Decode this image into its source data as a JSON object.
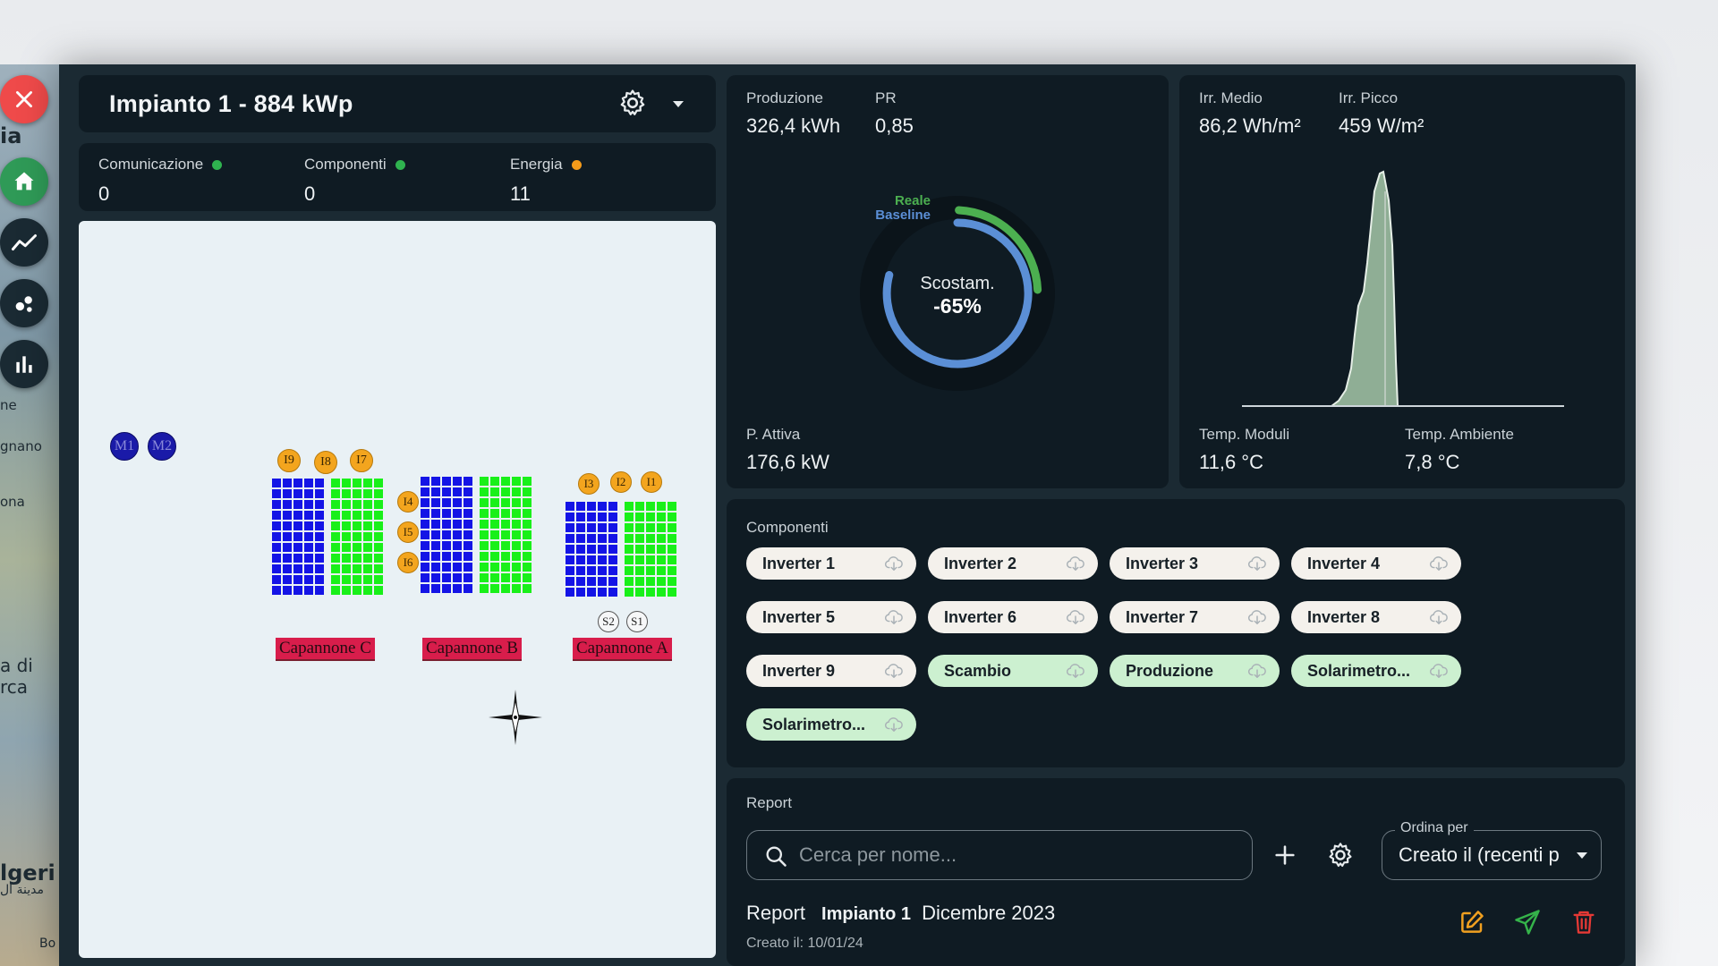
{
  "map_backdrop": {
    "labels": [
      "ia",
      "ne",
      "gnano",
      "ona",
      "a di",
      "rca",
      "lgeri",
      "مدينة ال",
      "Bo"
    ]
  },
  "sidebar": {
    "items": [
      {
        "name": "close",
        "icon": "close-icon"
      },
      {
        "name": "home",
        "icon": "home-icon"
      },
      {
        "name": "trend",
        "icon": "trend-line-icon"
      },
      {
        "name": "nodes",
        "icon": "nodes-icon"
      },
      {
        "name": "bar-chart",
        "icon": "bar-chart-icon"
      }
    ]
  },
  "header": {
    "title": "Impianto 1 - 884 kWp",
    "settings_icon": "gear-icon",
    "dropdown_icon": "caret-down-icon"
  },
  "status": {
    "comunicazione": {
      "label": "Comunicazione",
      "value": "0",
      "color": "#2fb34f"
    },
    "componenti": {
      "label": "Componenti",
      "value": "0",
      "color": "#2fb34f"
    },
    "energia": {
      "label": "Energia",
      "value": "11",
      "color": "#f39a1a"
    }
  },
  "plant_map": {
    "meters": [
      "M1",
      "M2"
    ],
    "sheds": [
      {
        "label": "Capannone C",
        "inverters": [
          "I9",
          "I8",
          "I7"
        ]
      },
      {
        "label": "Capannone B",
        "inverters": [
          "I4",
          "I5",
          "I6"
        ]
      },
      {
        "label": "Capannone A",
        "inverters": [
          "I3",
          "I2",
          "I1"
        ],
        "sensors": [
          "S2",
          "S1"
        ]
      }
    ],
    "colors": {
      "blue": "#1414e6",
      "green": "#19f019"
    }
  },
  "production": {
    "produzione_label": "Produzione",
    "produzione_value": "326,4 kWh",
    "pr_label": "PR",
    "pr_value": "0,85",
    "gauge": {
      "legend_reale": "Reale",
      "legend_baseline": "Baseline",
      "center_label": "Scostam.",
      "center_value": "-65%",
      "color_reale": "#4caf50",
      "color_baseline": "#5b8fd6"
    },
    "p_attiva_label": "P. Attiva",
    "p_attiva_value": "176,6 kW"
  },
  "irradiance": {
    "medio_label": "Irr. Medio",
    "medio_value": "86,2 Wh/m²",
    "picco_label": "Irr. Picco",
    "picco_value": "459 W/m²",
    "temp_moduli_label": "Temp. Moduli",
    "temp_moduli_value": "11,6 °C",
    "temp_ambiente_label": "Temp. Ambiente",
    "temp_ambiente_value": "7,8 °C"
  },
  "components": {
    "title": "Componenti",
    "chips": [
      {
        "label": "Inverter 1",
        "color": "default"
      },
      {
        "label": "Inverter 2",
        "color": "default"
      },
      {
        "label": "Inverter 3",
        "color": "default"
      },
      {
        "label": "Inverter 4",
        "color": "default"
      },
      {
        "label": "Inverter 5",
        "color": "default"
      },
      {
        "label": "Inverter 6",
        "color": "default"
      },
      {
        "label": "Inverter 7",
        "color": "default"
      },
      {
        "label": "Inverter 8",
        "color": "default"
      },
      {
        "label": "Inverter 9",
        "color": "default"
      },
      {
        "label": "Scambio",
        "color": "green"
      },
      {
        "label": "Produzione",
        "color": "green"
      },
      {
        "label": "Solarimetro...",
        "color": "green"
      },
      {
        "label": "Solarimetro...",
        "color": "green"
      }
    ],
    "chip_icon": "cloud-download-icon"
  },
  "report": {
    "title": "Report",
    "search_placeholder": "Cerca per nome...",
    "order_label": "Ordina per",
    "order_value": "Creato il (recenti p",
    "row": {
      "type": "Report",
      "plant": "Impianto 1",
      "period": "Dicembre 2023",
      "created": "Creato il: 10/01/24"
    },
    "action_colors": {
      "edit": "#f0a020",
      "send": "#35b34a",
      "delete": "#e53935"
    }
  }
}
